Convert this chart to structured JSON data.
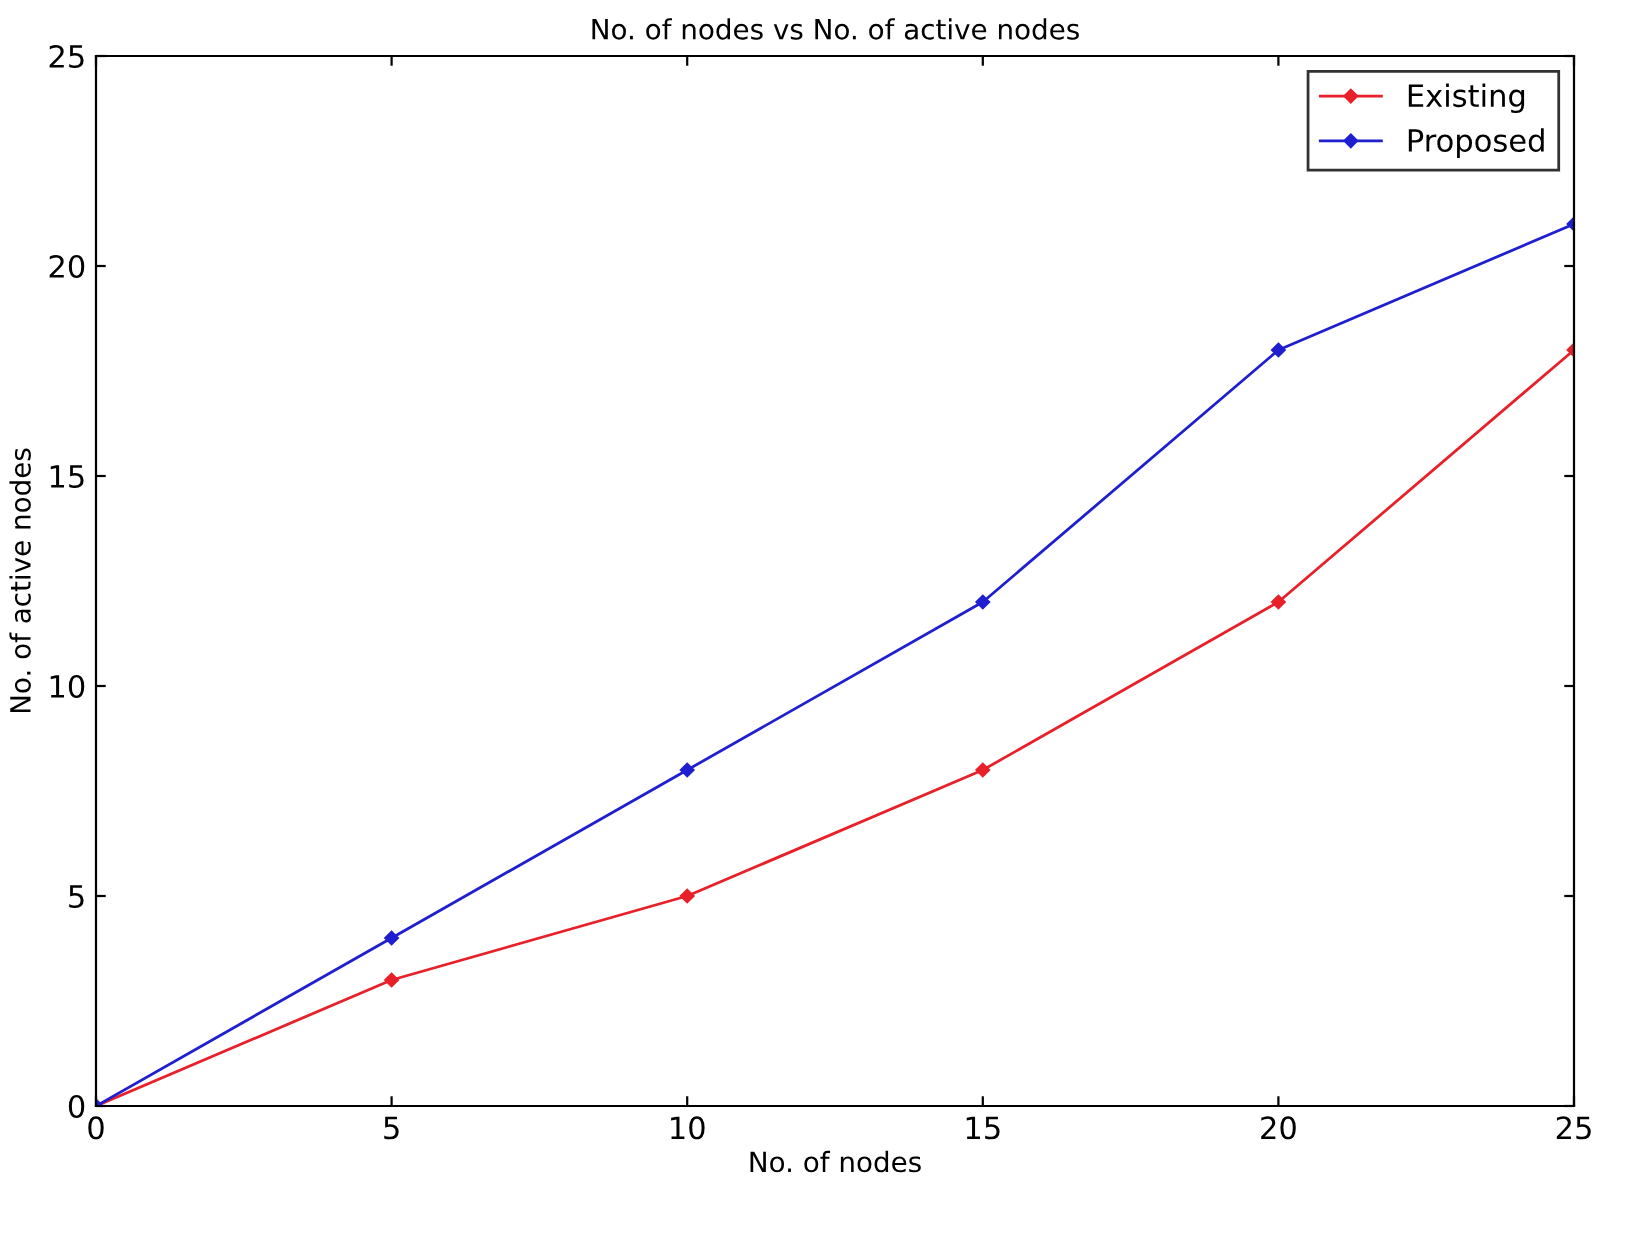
{
  "chart_data": {
    "type": "line",
    "title": "No. of nodes vs No. of active nodes",
    "xlabel": "No. of nodes",
    "ylabel": "No. of active nodes",
    "x": [
      0,
      5,
      10,
      15,
      20,
      25
    ],
    "series": [
      {
        "name": "Existing",
        "color": "#e8202a",
        "values": [
          0,
          3,
          5,
          8,
          12,
          18
        ]
      },
      {
        "name": "Proposed",
        "color": "#1f1fd0",
        "values": [
          0,
          4,
          8,
          12,
          18,
          21
        ]
      }
    ],
    "xlim": [
      0,
      25
    ],
    "ylim": [
      0,
      25
    ],
    "xticks": [
      0,
      5,
      10,
      15,
      20,
      25
    ],
    "yticks": [
      0,
      5,
      10,
      15,
      20,
      25
    ],
    "legend": "top right",
    "marker": "diamond",
    "line_style": "solid",
    "grid": false
  }
}
